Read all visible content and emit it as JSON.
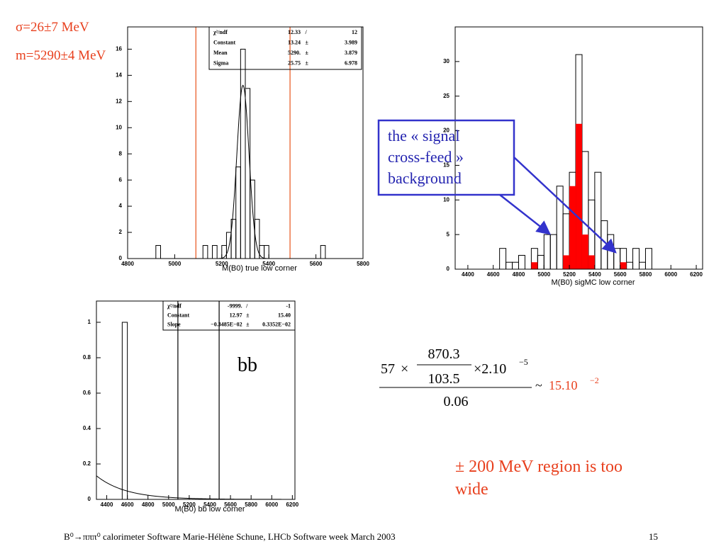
{
  "slide": {
    "sigma": "σ=26±7 MeV",
    "mass": "m=5290±4 MeV",
    "callout": [
      "the « signal",
      "cross-feed »",
      "background"
    ],
    "bb": "bb",
    "formula": {
      "a": "57",
      "times": "×",
      "num": "870.3",
      "den": "103.5",
      "factor": "×2.10",
      "exp": "−5",
      "bottom": "0.06",
      "approx": "~",
      "result": "15.10",
      "result_exp": "−2"
    },
    "remark": [
      "± 200 MeV region is too",
      "wide"
    ],
    "footer": "B⁰→πππ⁰ calorimeter Software Marie-Hélène Schune, LHCb Software week March 2003",
    "page": "15"
  },
  "chart_data": [
    {
      "type": "histogram",
      "xlabel": "M(B0) true low corner",
      "bins": [
        4800,
        4820,
        4840,
        4860,
        4880,
        4900,
        4920,
        4940,
        4960,
        4980,
        5000,
        5020,
        5040,
        5060,
        5080,
        5100,
        5120,
        5140,
        5160,
        5180,
        5200,
        5220,
        5240,
        5260,
        5280,
        5300,
        5320,
        5340,
        5360,
        5380,
        5400,
        5420,
        5440,
        5460,
        5480,
        5500,
        5520,
        5540,
        5560,
        5580,
        5600,
        5620,
        5640,
        5660,
        5680,
        5700,
        5720,
        5740,
        5760,
        5780,
        5800
      ],
      "series": [
        {
          "color": "#000000",
          "filled": false,
          "values": [
            0,
            0,
            0,
            0,
            0,
            0,
            1,
            0,
            0,
            0,
            0,
            0,
            0,
            0,
            0,
            0,
            1,
            0,
            1,
            0,
            1,
            2,
            3,
            7,
            16,
            13,
            6,
            3,
            1,
            1,
            0,
            0,
            0,
            0,
            0,
            0,
            0,
            0,
            0,
            0,
            0,
            1,
            0,
            0,
            0,
            0,
            0,
            0,
            0,
            0
          ]
        }
      ],
      "xlim": [
        4800,
        5800
      ],
      "xticks": [
        4800,
        5000,
        5200,
        5400,
        5600,
        5800
      ],
      "ylim": [
        0,
        17.7
      ],
      "yticks": [
        0,
        2,
        4,
        6,
        8,
        10,
        12,
        14,
        16
      ],
      "fit": "gaus",
      "stats": [
        [
          "χ²/ndf",
          12.33,
          "/",
          12
        ],
        [
          "Constant",
          13.24,
          "±",
          3.989
        ],
        [
          "Mean",
          {
            "value": 5290,
            "label": "5290."
          },
          "±",
          3.879
        ],
        [
          "Sigma",
          25.75,
          "±",
          6.978
        ]
      ],
      "vlines": [
        5090,
        5490
      ],
      "vline_color": "#e8541a"
    },
    {
      "type": "histogram",
      "xlabel": "M(B0) sigMC low corner",
      "bins": [
        4300,
        4350,
        4400,
        4450,
        4500,
        4550,
        4600,
        4650,
        4700,
        4750,
        4800,
        4850,
        4900,
        4950,
        5000,
        5050,
        5100,
        5150,
        5200,
        5250,
        5300,
        5350,
        5400,
        5450,
        5500,
        5550,
        5600,
        5650,
        5700,
        5750,
        5800,
        5850,
        5900,
        5950,
        6000,
        6050,
        6100,
        6150,
        6200
      ],
      "series": [
        {
          "color": "#000000",
          "filled": false,
          "values": [
            0,
            0,
            0,
            0,
            0,
            0,
            0,
            3,
            1,
            1,
            2,
            0,
            3,
            2,
            5,
            5,
            12,
            8,
            14,
            31,
            17,
            10,
            14,
            7,
            5,
            3,
            3,
            1,
            3,
            1,
            3,
            0,
            0,
            0,
            0,
            0,
            0,
            0
          ]
        },
        {
          "color": "#ff0000",
          "filled": true,
          "values": [
            0,
            0,
            0,
            0,
            0,
            0,
            0,
            0,
            0,
            0,
            0,
            0,
            1,
            0,
            0,
            0,
            0,
            2,
            12,
            21,
            5,
            2,
            0,
            0,
            0,
            0,
            1,
            0,
            0,
            0,
            0,
            0,
            0,
            0,
            0,
            0,
            0,
            0
          ]
        }
      ],
      "xlim": [
        4300,
        6250
      ],
      "xticks": [
        4400,
        4600,
        4800,
        5000,
        5200,
        5400,
        5600,
        5800,
        6000,
        6200
      ],
      "ylim": [
        0,
        35
      ],
      "yticks": [
        0,
        5,
        10,
        15,
        20,
        25,
        30
      ]
    },
    {
      "type": "histogram",
      "xlabel": "M(B0) bb low corner",
      "bins": [
        4300,
        4350,
        4400,
        4450,
        4500,
        4550,
        4600,
        4650,
        4700,
        4750,
        4800,
        4850,
        4900,
        4950,
        5000,
        5050,
        5100,
        5150,
        5200,
        5250,
        5300,
        5350,
        5400,
        5450,
        5500,
        5550,
        5600,
        5650,
        5700,
        5750,
        5800,
        5850,
        5900,
        5950,
        6000,
        6050,
        6100,
        6150,
        6200
      ],
      "series": [
        {
          "color": "#000000",
          "filled": false,
          "values": [
            0,
            0,
            0,
            0,
            0,
            1,
            0,
            0,
            0,
            0,
            0,
            0,
            0,
            0,
            0,
            0,
            0,
            0,
            0,
            0,
            0,
            0,
            0,
            0,
            0,
            0,
            0,
            0,
            0,
            0,
            0,
            0,
            0,
            0,
            0,
            0,
            0,
            0
          ]
        }
      ],
      "xlim": [
        4300,
        6225
      ],
      "xticks": [
        4400,
        4600,
        4800,
        5000,
        5200,
        5400,
        5600,
        5800,
        6000,
        6200
      ],
      "ylim": [
        0,
        1.12
      ],
      "yticks": [
        0,
        0.2,
        0.4,
        0.6,
        0.8,
        1
      ],
      "fit": "expo",
      "stats": [
        [
          "χ²/ndf",
          {
            "value": -9999,
            "label": "-9999."
          },
          "/",
          -1
        ],
        [
          "Constant",
          12.97,
          "±",
          {
            "value": 15.4,
            "label": "15.40"
          }
        ],
        [
          "Slope",
          {
            "value": -0.003485,
            "label": "−0.3485E−02"
          },
          "±",
          {
            "value": 0.003352,
            "label": "0.3352E−02"
          }
        ]
      ],
      "vlines": [
        5090,
        5490
      ],
      "vline_color": "#000000"
    }
  ]
}
